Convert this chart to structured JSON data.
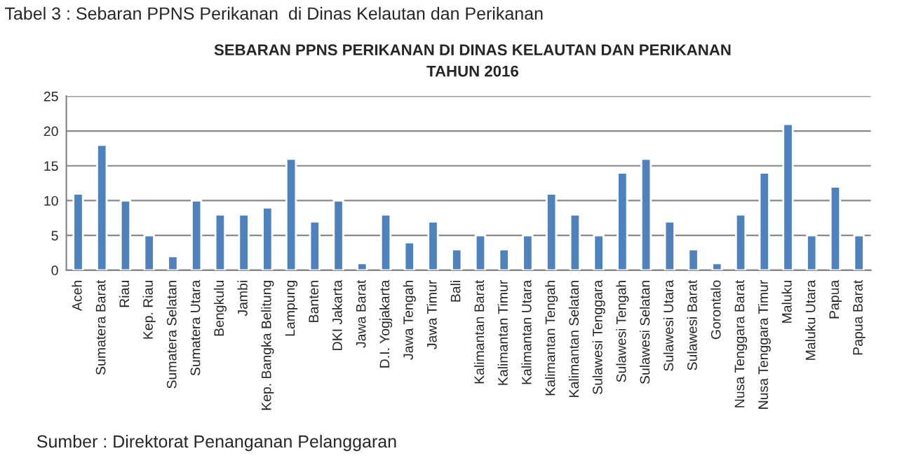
{
  "chart_data": {
    "type": "bar",
    "title": "SEBARAN PPNS PERIKANAN DI DINAS KELAUTAN DAN PERIKANAN\nTAHUN 2016",
    "annotations": [
      "Tabel 3 : Sebaran PPNS Perikanan  di Dinas Kelautan dan Perikanan",
      "Sumber : Direktorat Penanganan Pelanggaran"
    ],
    "categories": [
      "Aceh",
      "Sumatera Barat",
      "Riau",
      "Kep. Riau",
      "Sumatera Selatan",
      "Sumatera Utara",
      "Bengkulu",
      "Jambi",
      "Kep. Bangka Belitung",
      "Lampung",
      "Banten",
      "DKI Jakarta",
      "Jawa Barat",
      "D.I. Yogjakarta",
      "Jawa Tengah",
      "Jawa Timur",
      "Bali",
      "Kalimantan Barat",
      "Kalimantan Timur",
      "Kalimantan Utara",
      "Kalimantan Tengah",
      "Kalimantan Selatan",
      "Sulawesi Tenggara",
      "Sulawesi Tengah",
      "Sulawesi Selatan",
      "Sulawesi Utara",
      "Sulawesi Barat",
      "Gorontalo",
      "Nusa Tenggara Barat",
      "Nusa Tenggara Timur",
      "Maluku",
      "Maluku Utara",
      "Papua",
      "Papua Barat"
    ],
    "values": [
      11,
      18,
      10,
      5,
      2,
      10,
      8,
      8,
      9,
      16,
      7,
      10,
      1,
      8,
      4,
      7,
      3,
      5,
      3,
      5,
      11,
      8,
      5,
      14,
      16,
      7,
      3,
      1,
      8,
      14,
      21,
      5,
      12,
      5
    ],
    "color": "#4f81bd",
    "ylim": [
      0,
      25
    ],
    "yticks": [
      0,
      5,
      10,
      15,
      20,
      25
    ],
    "grid": "y",
    "legend": false
  }
}
